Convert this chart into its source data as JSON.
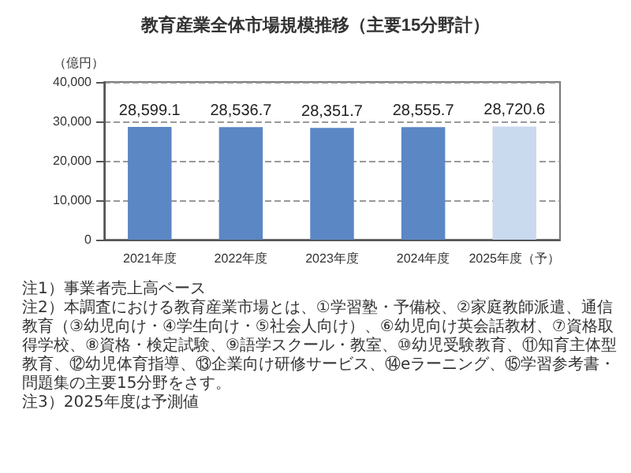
{
  "chart_data": {
    "type": "bar",
    "title": "教育産業全体市場規模推移（主要15分野計）",
    "ylabel": "（億円）",
    "categories": [
      "2021年度",
      "2022年度",
      "2023年度",
      "2024年度",
      "2025年度（予）"
    ],
    "values": [
      28599.1,
      28536.7,
      28351.7,
      28555.7,
      28720.6
    ],
    "value_labels": [
      "28,599.1",
      "28,536.7",
      "28,351.7",
      "28,555.7",
      "28,720.6"
    ],
    "colors": [
      "#5b87c5",
      "#5b87c5",
      "#5b87c5",
      "#5b87c5",
      "#c9d9ee"
    ],
    "ylim": [
      0,
      40000
    ],
    "yticks": [
      {
        "value": 0,
        "label": "0"
      },
      {
        "value": 10000,
        "label": "10,000"
      },
      {
        "value": 20000,
        "label": "20,000"
      },
      {
        "value": 30000,
        "label": "30,000"
      },
      {
        "value": 40000,
        "label": "40,000"
      }
    ],
    "grid": "y",
    "annotations": [
      "注1）事業者売上高ベース",
      "注2）本調査における教育産業市場とは、①学習塾・予備校、②家庭教師派遣、通信教育（③幼児向け・④学生向け・⑤社会人向け）、⑥幼児向け英会話教材、⑦資格取得学校、⑧資格・検定試験、⑨語学スクール・教室、⑩幼児受験教育、⑪知育主体型教育、⑫幼児体育指導、⑬企業向け研修サービス、⑭eラーニング、⑮学習参考書・問題集の主要15分野をさす。",
      "注3）2025年度は予測値"
    ]
  }
}
